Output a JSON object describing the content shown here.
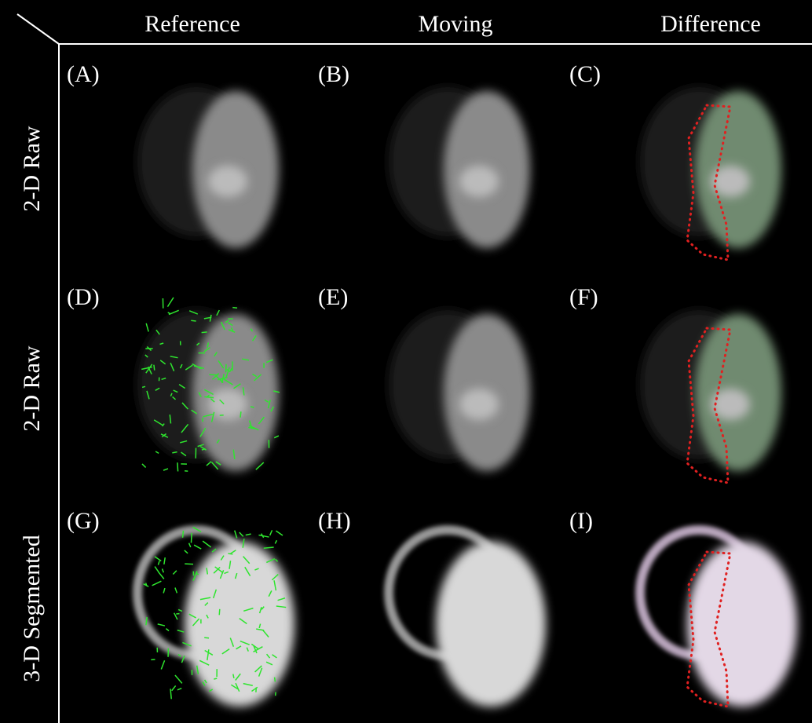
{
  "header": {
    "columns": [
      "Reference",
      "Moving",
      "Difference"
    ]
  },
  "rows": [
    "2-D Raw",
    "2-D Raw",
    "3-D Segmented"
  ],
  "panels": [
    "(A)",
    "(B)",
    "(C)",
    "(D)",
    "(E)",
    "(F)",
    "(G)",
    "(H)",
    "(I)"
  ]
}
